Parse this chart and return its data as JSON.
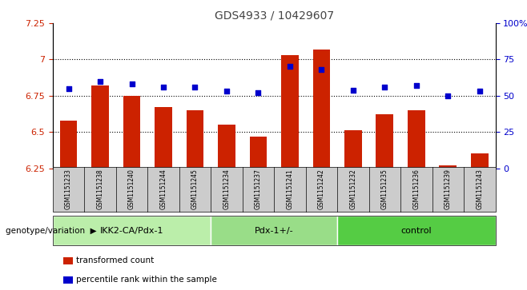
{
  "title": "GDS4933 / 10429607",
  "samples": [
    "GSM1151233",
    "GSM1151238",
    "GSM1151240",
    "GSM1151244",
    "GSM1151245",
    "GSM1151234",
    "GSM1151237",
    "GSM1151241",
    "GSM1151242",
    "GSM1151232",
    "GSM1151235",
    "GSM1151236",
    "GSM1151239",
    "GSM1151243"
  ],
  "bar_values": [
    6.58,
    6.82,
    6.75,
    6.67,
    6.65,
    6.55,
    6.47,
    7.03,
    7.07,
    6.51,
    6.62,
    6.65,
    6.27,
    6.35
  ],
  "dot_values": [
    55,
    60,
    58,
    56,
    56,
    53,
    52,
    70,
    68,
    54,
    56,
    57,
    50,
    53
  ],
  "ylim_left": [
    6.25,
    7.25
  ],
  "ylim_right": [
    0,
    100
  ],
  "yticks_left": [
    6.25,
    6.5,
    6.75,
    7.0,
    7.25
  ],
  "yticks_right": [
    0,
    25,
    50,
    75,
    100
  ],
  "ytick_labels_left": [
    "6.25",
    "6.5",
    "6.75",
    "7",
    "7.25"
  ],
  "ytick_labels_right": [
    "0",
    "25",
    "50",
    "75",
    "100%"
  ],
  "hlines": [
    6.5,
    6.75,
    7.0
  ],
  "groups": [
    {
      "label": "IKK2-CA/Pdx-1",
      "start": 0,
      "end": 5,
      "color": "#bbeeaa"
    },
    {
      "label": "Pdx-1+/-",
      "start": 5,
      "end": 9,
      "color": "#99dd88"
    },
    {
      "label": "control",
      "start": 9,
      "end": 14,
      "color": "#55cc44"
    }
  ],
  "bar_color": "#cc2200",
  "dot_color": "#0000cc",
  "bar_bottom": 6.25,
  "bar_width": 0.55,
  "genotype_label": "genotype/variation",
  "legend_items": [
    {
      "label": "transformed count",
      "color": "#cc2200"
    },
    {
      "label": "percentile rank within the sample",
      "color": "#0000cc"
    }
  ],
  "left_tick_color": "#cc2200",
  "right_tick_color": "#0000cc",
  "title_color": "#444444"
}
